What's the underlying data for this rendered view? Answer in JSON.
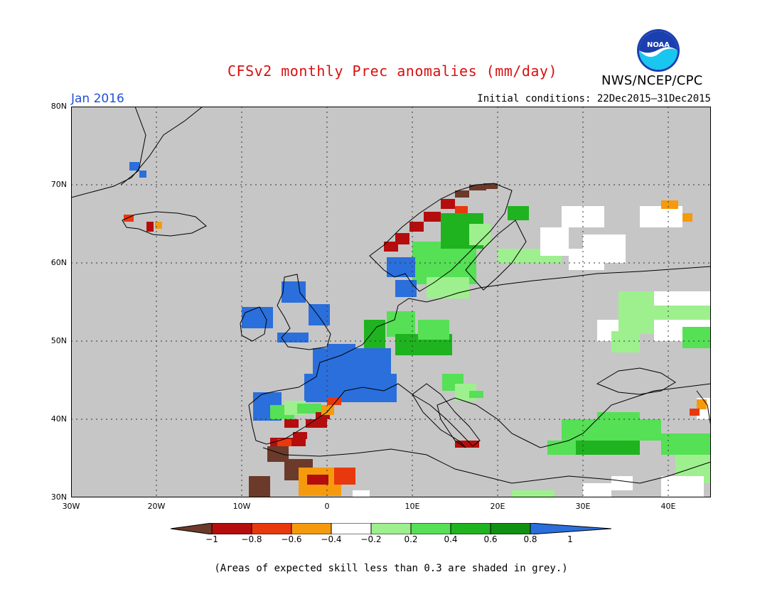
{
  "title": "CFSv2 monthly Prec anomalies (mm/day)",
  "agency": "NWS/NCEP/CPC",
  "logo_text": "NOAA",
  "month_label": "Jan 2016",
  "initial_conditions": "Initial conditions: 22Dec2015–31Dec2015",
  "lat_labels": [
    "80N",
    "70N",
    "60N",
    "50N",
    "40N",
    "30N"
  ],
  "lon_labels": [
    "30W",
    "20W",
    "10W",
    "0",
    "10E",
    "20E",
    "30E",
    "40E"
  ],
  "colorbar": {
    "tick_labels": [
      "−1",
      "−0.8",
      "−0.6",
      "−0.4",
      "−0.2",
      "0.2",
      "0.4",
      "0.6",
      "0.8",
      "1"
    ],
    "colors": [
      "#6b3a2a",
      "#b50d0d",
      "#e8380e",
      "#f59a0c",
      "#ffffff",
      "#9ef08e",
      "#55e055",
      "#1fb31f",
      "#119111",
      "#2a6fdc"
    ]
  },
  "footnote": "(Areas of expected skill less than 0.3 are shaded in grey.)",
  "colors": {
    "title": "#d81010",
    "month": "#1f4fd8",
    "skill_grey": "#c6c6c6"
  }
}
